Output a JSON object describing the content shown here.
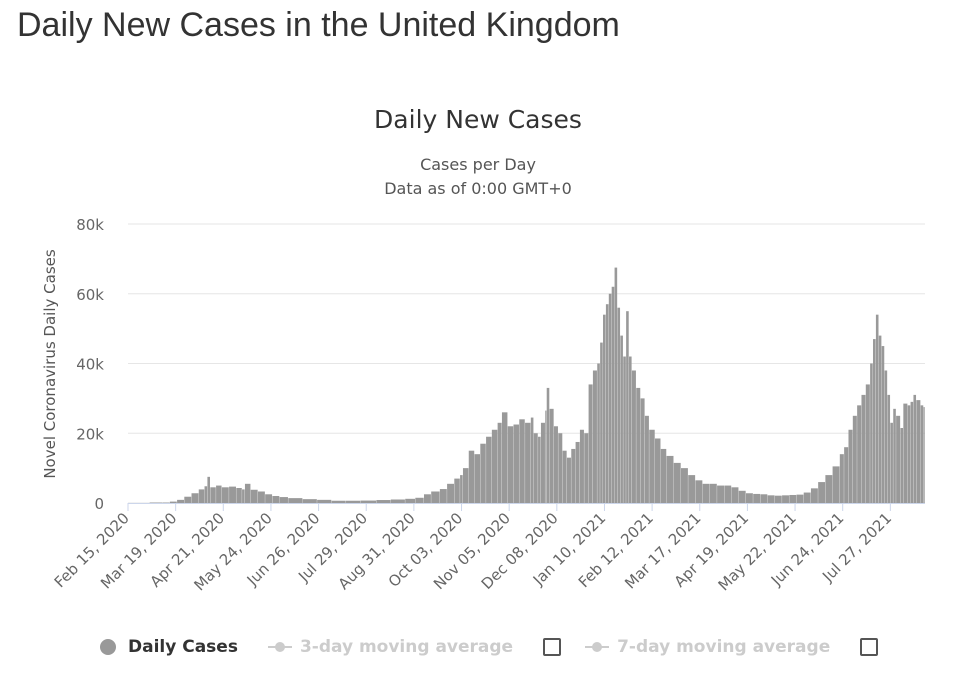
{
  "page": {
    "title": "Daily New Cases in the United Kingdom"
  },
  "chart_data": {
    "type": "bar",
    "title": "Daily New Cases",
    "subtitle_line1": "Cases per Day",
    "subtitle_line2": "Data as of 0:00 GMT+0",
    "xlabel": "",
    "ylabel": "Novel Coronavirus Daily Cases",
    "ylim": [
      0,
      80000
    ],
    "yticks": [
      0,
      20000,
      40000,
      60000,
      80000
    ],
    "ytick_labels": [
      "0",
      "20k",
      "40k",
      "60k",
      "80k"
    ],
    "xlim": [
      "2020-02-15",
      "2021-08-19"
    ],
    "xticks": [
      "2020-02-15",
      "2020-03-19",
      "2020-04-21",
      "2020-05-24",
      "2020-06-26",
      "2020-07-29",
      "2020-08-31",
      "2020-10-03",
      "2020-11-05",
      "2020-12-08",
      "2021-01-10",
      "2021-02-12",
      "2021-03-17",
      "2021-04-19",
      "2021-05-22",
      "2021-06-24",
      "2021-07-27"
    ],
    "xtick_labels": [
      "Feb 15, 2020",
      "Mar 19, 2020",
      "Apr 21, 2020",
      "May 24, 2020",
      "Jun 26, 2020",
      "Jul 29, 2020",
      "Aug 31, 2020",
      "Oct 03, 2020",
      "Nov 05, 2020",
      "Dec 08, 2020",
      "Jan 10, 2021",
      "Feb 12, 2021",
      "Mar 17, 2021",
      "Apr 19, 2021",
      "May 22, 2021",
      "Jun 24, 2021",
      "Jul 27, 2021"
    ],
    "grid": true,
    "legend_placement": "bottom",
    "bar_color": "#999999",
    "series": [
      {
        "name": "Daily Cases",
        "points": [
          [
            "2020-02-15",
            0
          ],
          [
            "2020-03-01",
            10
          ],
          [
            "2020-03-10",
            100
          ],
          [
            "2020-03-15",
            400
          ],
          [
            "2020-03-20",
            900
          ],
          [
            "2020-03-25",
            1800
          ],
          [
            "2020-03-30",
            2800
          ],
          [
            "2020-04-04",
            3900
          ],
          [
            "2020-04-08",
            4800
          ],
          [
            "2020-04-10",
            7500
          ],
          [
            "2020-04-12",
            4500
          ],
          [
            "2020-04-16",
            5000
          ],
          [
            "2020-04-20",
            4500
          ],
          [
            "2020-04-25",
            4700
          ],
          [
            "2020-04-30",
            4300
          ],
          [
            "2020-05-04",
            3900
          ],
          [
            "2020-05-06",
            5500
          ],
          [
            "2020-05-10",
            3800
          ],
          [
            "2020-05-15",
            3300
          ],
          [
            "2020-05-20",
            2500
          ],
          [
            "2020-05-25",
            2000
          ],
          [
            "2020-05-30",
            1700
          ],
          [
            "2020-06-05",
            1400
          ],
          [
            "2020-06-15",
            1100
          ],
          [
            "2020-06-25",
            900
          ],
          [
            "2020-07-05",
            650
          ],
          [
            "2020-07-15",
            650
          ],
          [
            "2020-07-25",
            700
          ],
          [
            "2020-08-05",
            850
          ],
          [
            "2020-08-15",
            1000
          ],
          [
            "2020-08-25",
            1200
          ],
          [
            "2020-09-01",
            1500
          ],
          [
            "2020-09-07",
            2500
          ],
          [
            "2020-09-12",
            3300
          ],
          [
            "2020-09-18",
            4000
          ],
          [
            "2020-09-23",
            5500
          ],
          [
            "2020-09-28",
            7000
          ],
          [
            "2020-10-02",
            8000
          ],
          [
            "2020-10-04",
            10000
          ],
          [
            "2020-10-08",
            15000
          ],
          [
            "2020-10-12",
            14000
          ],
          [
            "2020-10-16",
            17000
          ],
          [
            "2020-10-20",
            19000
          ],
          [
            "2020-10-24",
            21000
          ],
          [
            "2020-10-28",
            23000
          ],
          [
            "2020-10-31",
            26000
          ],
          [
            "2020-11-04",
            22000
          ],
          [
            "2020-11-08",
            22500
          ],
          [
            "2020-11-12",
            24000
          ],
          [
            "2020-11-16",
            23000
          ],
          [
            "2020-11-20",
            24500
          ],
          [
            "2020-11-22",
            20000
          ],
          [
            "2020-11-25",
            19000
          ],
          [
            "2020-11-27",
            23000
          ],
          [
            "2020-11-30",
            26500
          ],
          [
            "2020-12-01",
            33000
          ],
          [
            "2020-12-03",
            27000
          ],
          [
            "2020-12-06",
            22000
          ],
          [
            "2020-12-09",
            20000
          ],
          [
            "2020-12-12",
            15000
          ],
          [
            "2020-12-15",
            13000
          ],
          [
            "2020-12-18",
            15500
          ],
          [
            "2020-12-21",
            17500
          ],
          [
            "2020-12-24",
            21000
          ],
          [
            "2020-12-27",
            20000
          ],
          [
            "2020-12-30",
            34000
          ],
          [
            "2021-01-02",
            38000
          ],
          [
            "2021-01-05",
            40000
          ],
          [
            "2021-01-07",
            46000
          ],
          [
            "2021-01-09",
            54000
          ],
          [
            "2021-01-11",
            57000
          ],
          [
            "2021-01-13",
            60000
          ],
          [
            "2021-01-15",
            62000
          ],
          [
            "2021-01-17",
            67500
          ],
          [
            "2021-01-19",
            56000
          ],
          [
            "2021-01-21",
            48000
          ],
          [
            "2021-01-23",
            42000
          ],
          [
            "2021-01-25",
            55000
          ],
          [
            "2021-01-27",
            42000
          ],
          [
            "2021-01-29",
            38000
          ],
          [
            "2021-02-01",
            33000
          ],
          [
            "2021-02-04",
            30000
          ],
          [
            "2021-02-07",
            25000
          ],
          [
            "2021-02-10",
            21000
          ],
          [
            "2021-02-14",
            18500
          ],
          [
            "2021-02-18",
            15500
          ],
          [
            "2021-02-22",
            13500
          ],
          [
            "2021-02-27",
            11500
          ],
          [
            "2021-03-04",
            10000
          ],
          [
            "2021-03-09",
            8000
          ],
          [
            "2021-03-14",
            6500
          ],
          [
            "2021-03-19",
            5500
          ],
          [
            "2021-03-24",
            5500
          ],
          [
            "2021-03-29",
            5000
          ],
          [
            "2021-04-03",
            5000
          ],
          [
            "2021-04-08",
            4500
          ],
          [
            "2021-04-13",
            3500
          ],
          [
            "2021-04-18",
            2800
          ],
          [
            "2021-04-23",
            2600
          ],
          [
            "2021-04-28",
            2500
          ],
          [
            "2021-05-03",
            2200
          ],
          [
            "2021-05-08",
            2100
          ],
          [
            "2021-05-13",
            2200
          ],
          [
            "2021-05-18",
            2300
          ],
          [
            "2021-05-23",
            2400
          ],
          [
            "2021-05-28",
            3000
          ],
          [
            "2021-06-02",
            4200
          ],
          [
            "2021-06-07",
            6000
          ],
          [
            "2021-06-12",
            8000
          ],
          [
            "2021-06-17",
            10500
          ],
          [
            "2021-06-22",
            14000
          ],
          [
            "2021-06-25",
            16000
          ],
          [
            "2021-06-28",
            21000
          ],
          [
            "2021-07-01",
            25000
          ],
          [
            "2021-07-04",
            28000
          ],
          [
            "2021-07-07",
            31000
          ],
          [
            "2021-07-10",
            34000
          ],
          [
            "2021-07-13",
            40000
          ],
          [
            "2021-07-15",
            47000
          ],
          [
            "2021-07-17",
            54000
          ],
          [
            "2021-07-19",
            48000
          ],
          [
            "2021-07-21",
            45000
          ],
          [
            "2021-07-23",
            38000
          ],
          [
            "2021-07-25",
            31000
          ],
          [
            "2021-07-27",
            23000
          ],
          [
            "2021-07-29",
            27000
          ],
          [
            "2021-07-31",
            25000
          ],
          [
            "2021-08-03",
            21500
          ],
          [
            "2021-08-05",
            28500
          ],
          [
            "2021-08-08",
            28000
          ],
          [
            "2021-08-10",
            29000
          ],
          [
            "2021-08-12",
            31000
          ],
          [
            "2021-08-14",
            29500
          ],
          [
            "2021-08-17",
            28000
          ],
          [
            "2021-08-19",
            27500
          ]
        ]
      }
    ]
  },
  "legend": {
    "items": [
      {
        "label": "Daily Cases",
        "color": "#999999",
        "checkbox": false,
        "active": true
      },
      {
        "label": "3-day moving average",
        "color": "#cccccc",
        "checkbox": true,
        "active": false
      },
      {
        "label": "7-day moving average",
        "color": "#cccccc",
        "checkbox": true,
        "active": false
      }
    ]
  }
}
